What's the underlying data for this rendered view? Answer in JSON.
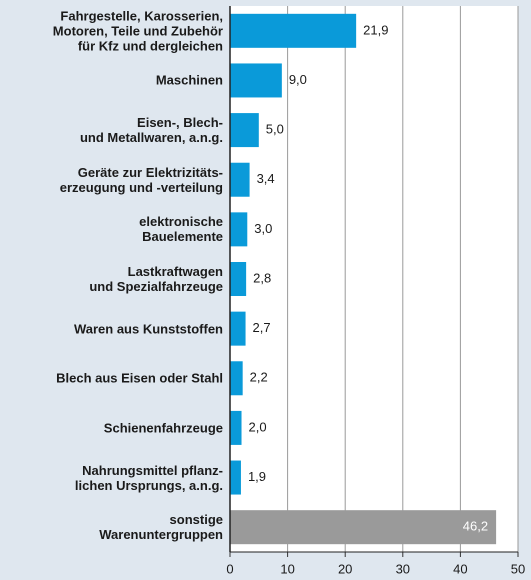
{
  "chart_data": {
    "type": "bar",
    "orientation": "horizontal",
    "categories": [
      "Fahrgestelle, Karosserien,\nMotoren, Teile und Zubehör\nfür Kfz und dergleichen",
      "Maschinen",
      "Eisen-, Blech-\nund Metallwaren, a.n.g.",
      "Geräte zur Elektrizitäts-\nerzeugung und -verteilung",
      "elektronische\nBauelemente",
      "Lastkraftwagen\nund Spezialfahrzeuge",
      "Waren aus Kunststoffen",
      "Blech aus Eisen oder Stahl",
      "Schienenfahrzeuge",
      "Nahrungsmittel pflanz-\nlichen Ursprungs, a.n.g.",
      "sonstige\nWarenuntergruppen"
    ],
    "values": [
      21.9,
      9.0,
      5.0,
      3.4,
      3.0,
      2.8,
      2.7,
      2.2,
      2.0,
      1.9,
      46.2
    ],
    "value_labels": [
      "21,9",
      "9,0",
      "5,0",
      "3,4",
      "3,0",
      "2,8",
      "2,7",
      "2,2",
      "2,0",
      "1,9",
      "46,2"
    ],
    "colors": [
      "#0a9ad9",
      "#0a9ad9",
      "#0a9ad9",
      "#0a9ad9",
      "#0a9ad9",
      "#0a9ad9",
      "#0a9ad9",
      "#0a9ad9",
      "#0a9ad9",
      "#0a9ad9",
      "#9a9a9a"
    ],
    "xlim": [
      0,
      50
    ],
    "xticks": [
      0,
      10,
      20,
      30,
      40,
      50
    ],
    "grid": true
  }
}
